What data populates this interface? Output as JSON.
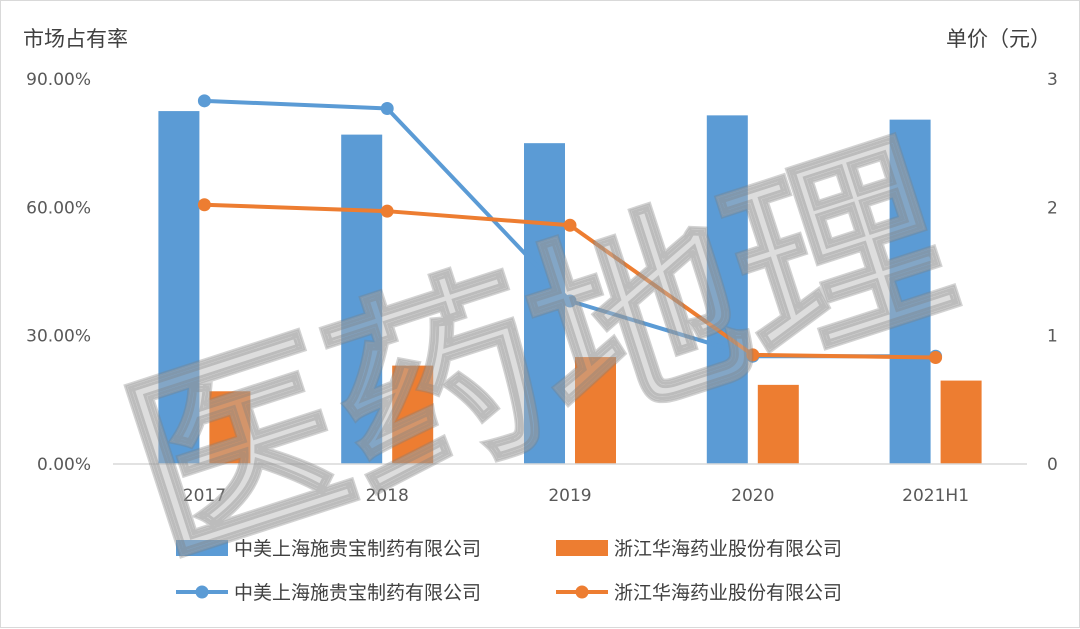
{
  "chart_data": {
    "type": "bar",
    "categories": [
      "2017",
      "2018",
      "2019",
      "2020",
      "2021H1"
    ],
    "y_left": {
      "label": "市场占有率",
      "ticks": [
        "0.00%",
        "30.00%",
        "60.00%",
        "90.00%"
      ],
      "range": [
        0,
        90
      ]
    },
    "y_right": {
      "label": "单价（元）",
      "ticks": [
        "0",
        "1",
        "2",
        "3"
      ],
      "range": [
        0,
        3
      ]
    },
    "series": [
      {
        "name": "中美上海施贵宝制药有限公司",
        "type": "bar",
        "axis": "left",
        "color": "#5b9bd5",
        "values": [
          82.5,
          77,
          75,
          81.5,
          80.5
        ]
      },
      {
        "name": "浙江华海药业股份有限公司",
        "type": "bar",
        "axis": "left",
        "color": "#ed7d31",
        "values": [
          17,
          23,
          25,
          18.5,
          19.5
        ]
      },
      {
        "name": "中美上海施贵宝制药有限公司",
        "type": "line",
        "axis": "right",
        "color": "#5b9bd5",
        "values": [
          2.83,
          2.77,
          1.27,
          0.84,
          0.84
        ]
      },
      {
        "name": "浙江华海药业股份有限公司",
        "type": "line",
        "axis": "right",
        "color": "#ed7d31",
        "values": [
          2.02,
          1.97,
          1.86,
          0.85,
          0.83
        ]
      }
    ],
    "grid": false,
    "legend": "bottom",
    "watermark": "医药地理"
  }
}
